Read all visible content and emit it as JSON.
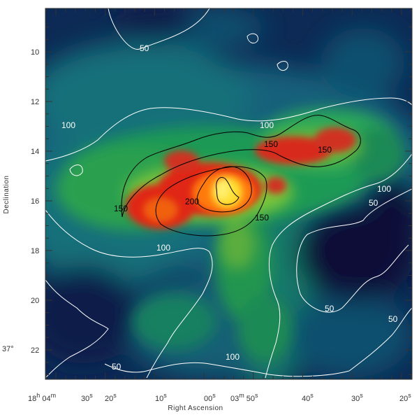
{
  "chart_data": {
    "type": "heatmap",
    "title": "",
    "xlabel": "Right Ascension",
    "ylabel": "Declination",
    "y_ticks": [
      {
        "value": 10,
        "label": "10"
      },
      {
        "value": 12,
        "label": "12"
      },
      {
        "value": 14,
        "label": "14"
      },
      {
        "value": 16,
        "label": "16"
      },
      {
        "value": 18,
        "label": "18"
      },
      {
        "value": 20,
        "label": "20"
      },
      {
        "value": 22,
        "label": "22"
      }
    ],
    "y_degree_prefix": "37°",
    "x_ticks": [
      {
        "label": "18h 04m",
        "main": "18",
        "sup1": "h",
        "mid": " 04",
        "sup2": "m"
      },
      {
        "label": "30s",
        "main": "30",
        "sup1": "s"
      },
      {
        "label": "20s",
        "main": "20",
        "sup1": "s"
      },
      {
        "label": "10s",
        "main": "10",
        "sup1": "s"
      },
      {
        "label": "00s",
        "main": "00",
        "sup1": "s"
      },
      {
        "label": "03m 50s",
        "main": "03",
        "sup1": "m",
        "mid": " 50",
        "sup2": "s"
      },
      {
        "label": "40s",
        "main": "40",
        "sup1": "s"
      },
      {
        "label": "30s",
        "main": "30",
        "sup1": "s"
      },
      {
        "label": "20s",
        "main": "20",
        "sup1": "s"
      }
    ],
    "contour_levels": [
      50,
      100,
      150,
      200
    ],
    "contour_labels": [
      "50",
      "50",
      "50",
      "50",
      "50",
      "100",
      "100",
      "100",
      "100",
      "100",
      "150",
      "150",
      "150",
      "150",
      "200"
    ],
    "colormap": [
      "#0a1440",
      "#0e4a66",
      "#1f9a5a",
      "#7cc43a",
      "#e02818",
      "#ff7a10",
      "#ffe030"
    ]
  }
}
